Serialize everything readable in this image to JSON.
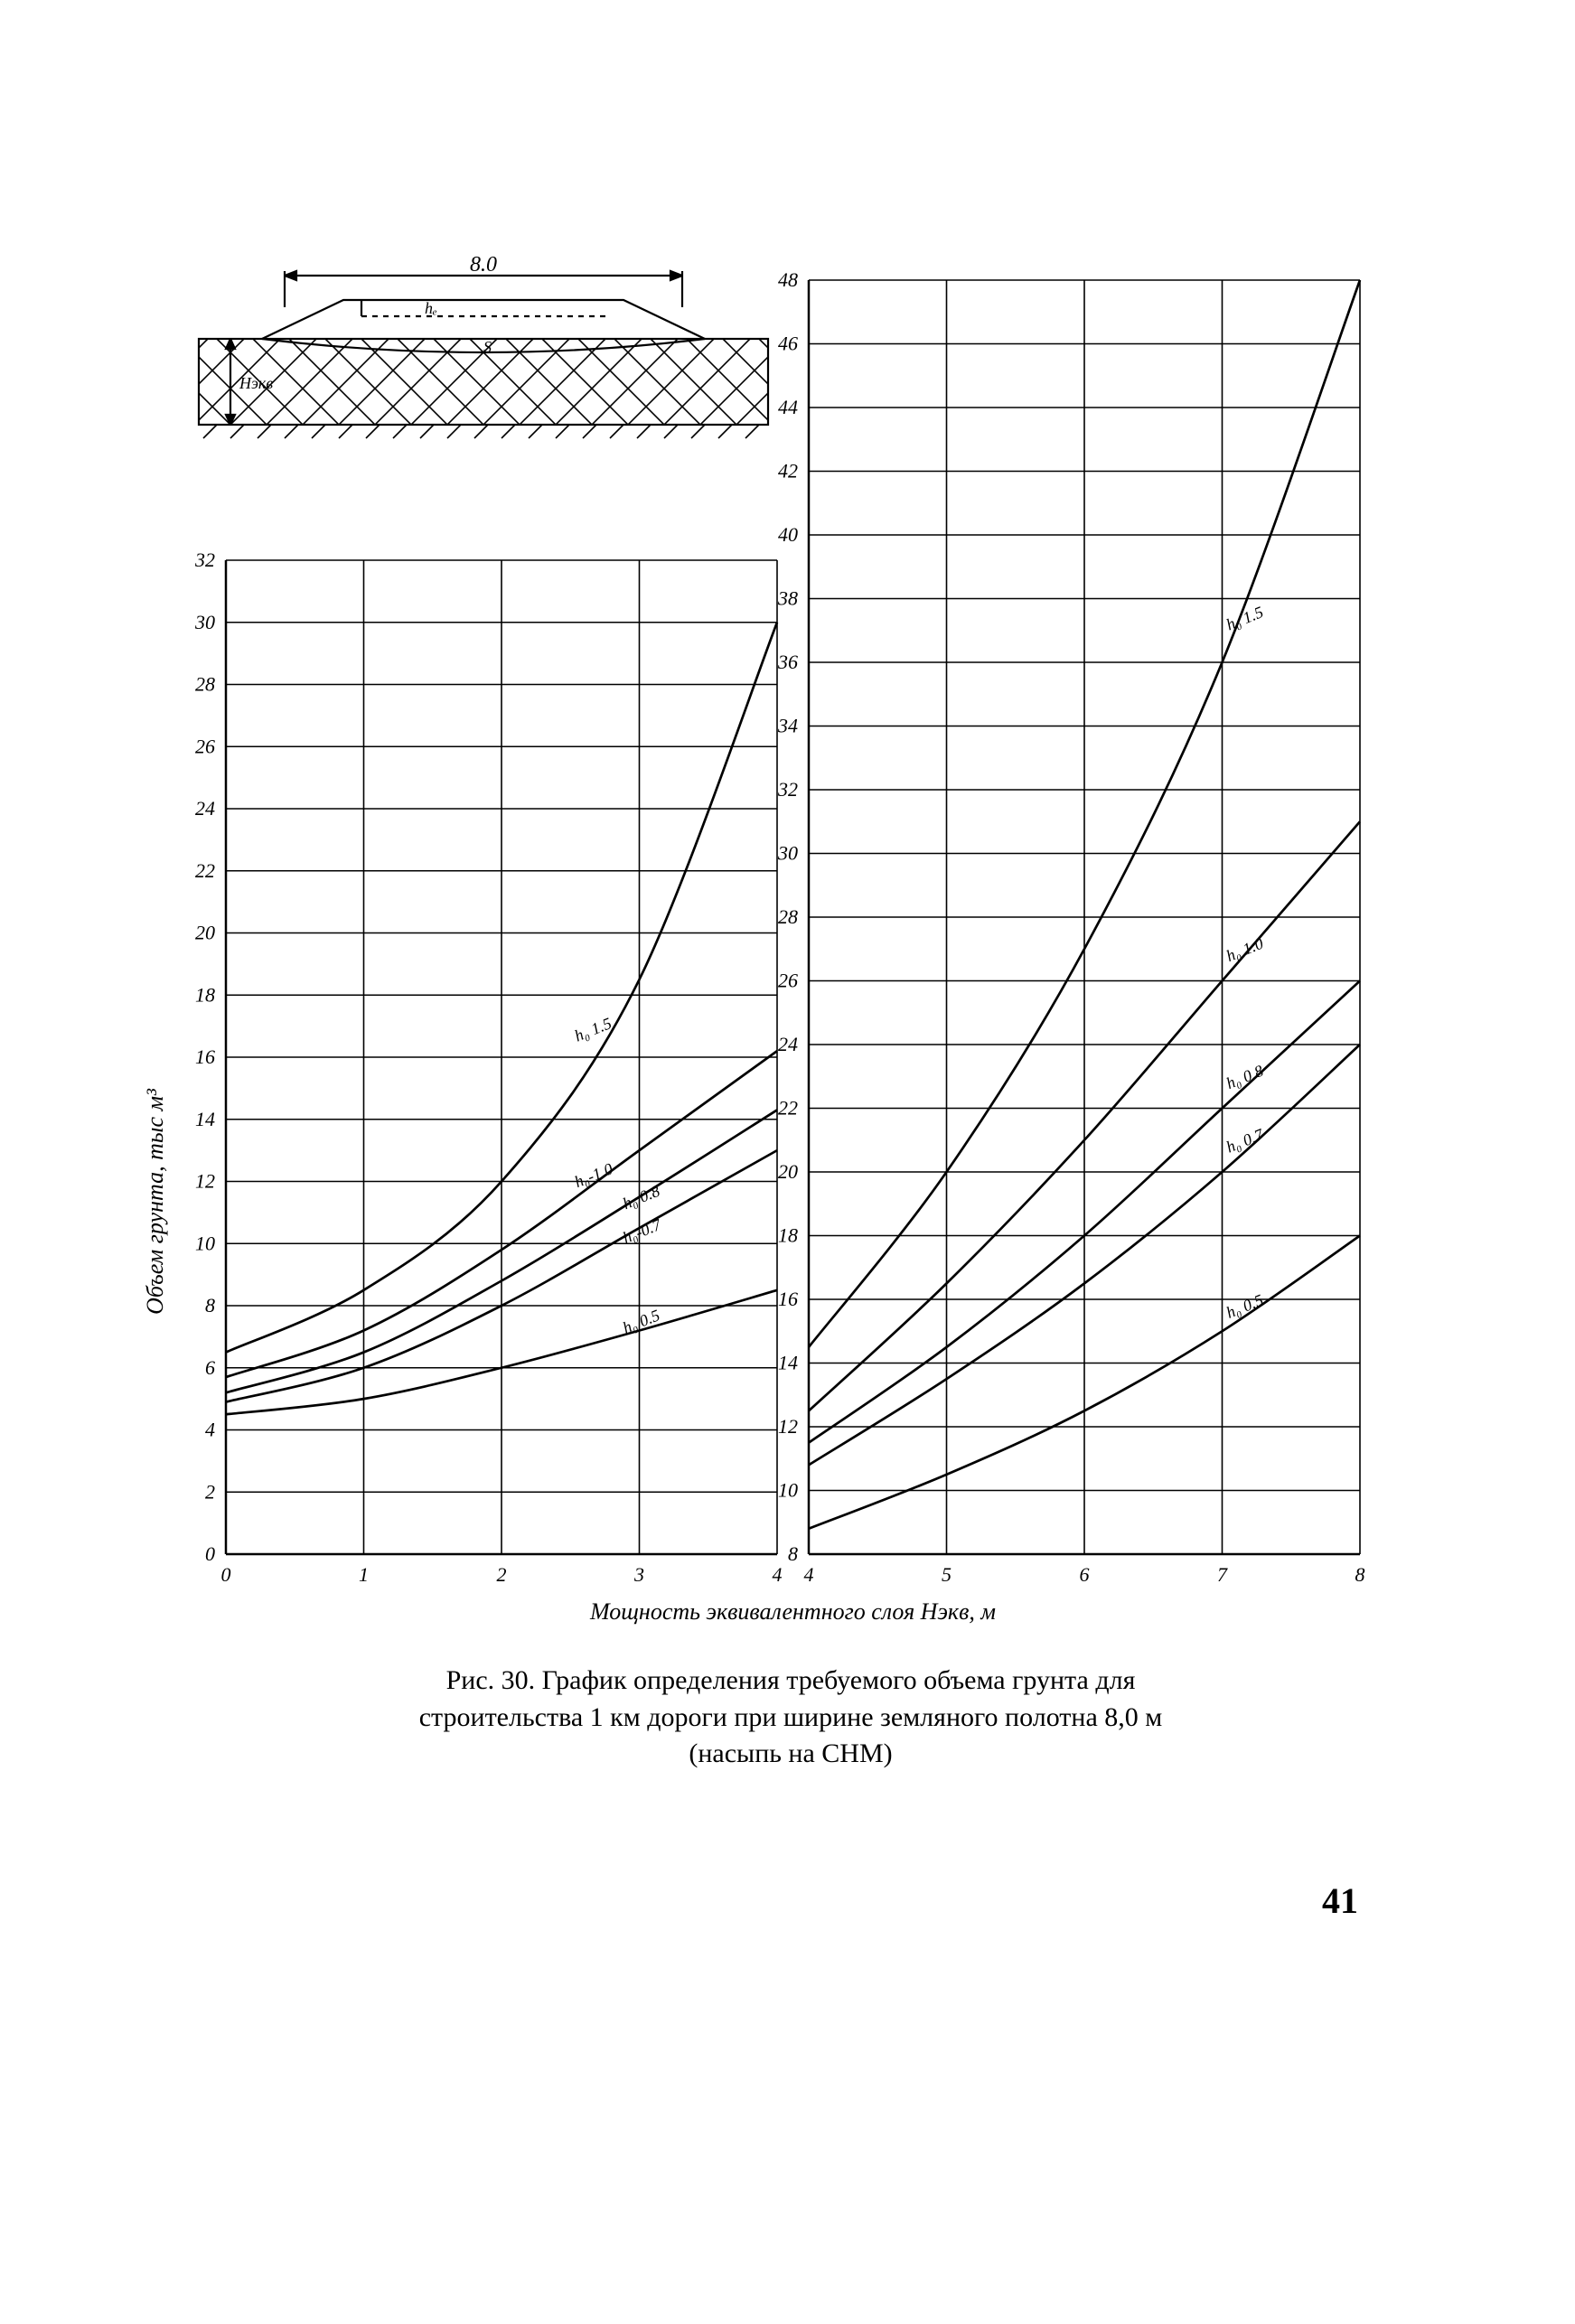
{
  "page_number": "41",
  "caption": {
    "line1": "Рис. 30. График определения требуемого объема грунта для",
    "line2": "строительства 1 км дороги при ширине земляного полотна 8,0 м",
    "line3": "(насыпь на СНМ)"
  },
  "diagram": {
    "width_label": "8.0",
    "h_label": "hₑ",
    "h_ekv_label": "Hэкв",
    "s_label": "S"
  },
  "y_axis_label": "Объем грунта, тыс м³",
  "x_axis_label": "Мощность эквивалентного слоя Нэкв, м",
  "colors": {
    "stroke": "#000000",
    "bg": "#ffffff",
    "text": "#000000"
  },
  "font": {
    "tick_pt": 22,
    "axis_label_pt": 26,
    "curve_label_pt": 18,
    "caption_pt": 30
  },
  "left_chart": {
    "type": "line",
    "xlim": [
      0,
      4
    ],
    "ylim": [
      0,
      32
    ],
    "xtick_step": 1,
    "ytick_step": 2,
    "xticks": [
      "0",
      "1",
      "2",
      "3",
      "4"
    ],
    "yticks": [
      "0",
      "2",
      "4",
      "6",
      "8",
      "10",
      "12",
      "14",
      "16",
      "18",
      "20",
      "22",
      "24",
      "26",
      "28",
      "30",
      "32"
    ],
    "line_width": 2.2,
    "curves": [
      {
        "label": "h₀ 1.5",
        "data": [
          [
            0,
            6.5
          ],
          [
            1,
            8.5
          ],
          [
            2,
            12.0
          ],
          [
            3,
            18.5
          ],
          [
            4,
            30.0
          ]
        ]
      },
      {
        "label": "h₀-1.0",
        "data": [
          [
            0,
            5.7
          ],
          [
            1,
            7.2
          ],
          [
            2,
            9.8
          ],
          [
            3,
            13.0
          ],
          [
            4,
            16.2
          ]
        ]
      },
      {
        "label": "h₀ 0.8",
        "data": [
          [
            0,
            5.2
          ],
          [
            1,
            6.5
          ],
          [
            2,
            8.8
          ],
          [
            3,
            11.5
          ],
          [
            4,
            14.3
          ]
        ]
      },
      {
        "label": "h₀-0.7",
        "data": [
          [
            0,
            4.9
          ],
          [
            1,
            6.0
          ],
          [
            2,
            8.0
          ],
          [
            3,
            10.5
          ],
          [
            4,
            13.0
          ]
        ]
      },
      {
        "label": "h₀ 0.5",
        "data": [
          [
            0,
            4.5
          ],
          [
            1,
            5.0
          ],
          [
            2,
            6.0
          ],
          [
            3,
            7.2
          ],
          [
            4,
            8.5
          ]
        ]
      }
    ],
    "curve_label_pos": [
      {
        "x": 2.55,
        "y": 16.5,
        "text": "h₀ 1.5"
      },
      {
        "x": 2.55,
        "y": 11.8,
        "text": "h₀-1.0"
      },
      {
        "x": 2.9,
        "y": 11.1,
        "text": "h₀ 0.8"
      },
      {
        "x": 2.9,
        "y": 10.0,
        "text": "h₀-0.7"
      },
      {
        "x": 2.9,
        "y": 7.1,
        "text": "h₀ 0.5"
      }
    ]
  },
  "right_chart": {
    "type": "line",
    "xlim": [
      4,
      8
    ],
    "ylim": [
      8,
      48
    ],
    "xtick_step": 1,
    "ytick_step": 2,
    "xticks": [
      "4",
      "5",
      "6",
      "7",
      "8"
    ],
    "yticks": [
      "8",
      "10",
      "12",
      "14",
      "16",
      "18",
      "20",
      "22",
      "24",
      "26",
      "28",
      "30",
      "32",
      "34",
      "36",
      "38",
      "40",
      "42",
      "44",
      "46",
      "48"
    ],
    "line_width": 2.2,
    "curves": [
      {
        "label": "h₀ 1.5",
        "data": [
          [
            4,
            14.5
          ],
          [
            5,
            20.0
          ],
          [
            6,
            27.0
          ],
          [
            7,
            36.0
          ],
          [
            8,
            48.0
          ]
        ]
      },
      {
        "label": "h₀ 1.0",
        "data": [
          [
            4,
            12.5
          ],
          [
            5,
            16.5
          ],
          [
            6,
            21.0
          ],
          [
            7,
            26.0
          ],
          [
            8,
            31.0
          ]
        ]
      },
      {
        "label": "h₀ 0.8",
        "data": [
          [
            4,
            11.5
          ],
          [
            5,
            14.5
          ],
          [
            6,
            18.0
          ],
          [
            7,
            22.0
          ],
          [
            8,
            26.0
          ]
        ]
      },
      {
        "label": "h₀ 0.7",
        "data": [
          [
            4,
            10.8
          ],
          [
            5,
            13.5
          ],
          [
            6,
            16.5
          ],
          [
            7,
            20.0
          ],
          [
            8,
            24.0
          ]
        ]
      },
      {
        "label": "h₀ 0.5",
        "data": [
          [
            4,
            8.8
          ],
          [
            5,
            10.5
          ],
          [
            6,
            12.5
          ],
          [
            7,
            15.0
          ],
          [
            8,
            18.0
          ]
        ]
      }
    ],
    "curve_label_pos": [
      {
        "x": 7.05,
        "y": 37.0,
        "text": "h₀ 1.5"
      },
      {
        "x": 7.05,
        "y": 26.6,
        "text": "h₀ 1.0"
      },
      {
        "x": 7.05,
        "y": 22.6,
        "text": "h₀ 0.8"
      },
      {
        "x": 7.05,
        "y": 20.6,
        "text": "h₀ 0.7"
      },
      {
        "x": 7.05,
        "y": 15.4,
        "text": "h₀ 0.5"
      }
    ]
  }
}
